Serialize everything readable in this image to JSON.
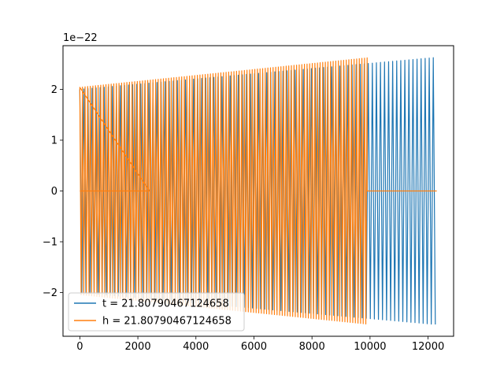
{
  "chart_data": {
    "type": "line",
    "title": "",
    "xlabel": "",
    "ylabel": "",
    "xlim": [
      -580,
      12880
    ],
    "ylim": [
      -2.86,
      2.86
    ],
    "y_scale_note": "1e−22",
    "grid": false,
    "legend_placement": "lower-left",
    "x_ticks": [
      {
        "value": 0,
        "label": "0"
      },
      {
        "value": 2000,
        "label": "2000"
      },
      {
        "value": 4000,
        "label": "4000"
      },
      {
        "value": 6000,
        "label": "6000"
      },
      {
        "value": 8000,
        "label": "8000"
      },
      {
        "value": 10000,
        "label": "10000"
      },
      {
        "value": 12000,
        "label": "12000"
      }
    ],
    "y_ticks": [
      {
        "value": -2,
        "label": "−2"
      },
      {
        "value": -1,
        "label": "−1"
      },
      {
        "value": 0,
        "label": "0"
      },
      {
        "value": 1,
        "label": "1"
      },
      {
        "value": 2,
        "label": "2"
      }
    ],
    "series": [
      {
        "name": "t = 21.80790467124658",
        "color": "#1f77b4",
        "x_start": 0,
        "x_end": 12300,
        "period": 140,
        "zero_before": 0,
        "envelope": {
          "x": [
            0,
            12300
          ],
          "amplitude": [
            2.0,
            2.63
          ]
        }
      },
      {
        "name": "h = 21.80790467124658",
        "color": "#ff7f0e",
        "x_start": 0,
        "x_end": 12300,
        "period": 90,
        "zero_before": 2400,
        "signal_start": 0,
        "signal_end": 9900,
        "envelope": {
          "x": [
            0,
            9900
          ],
          "amplitude": [
            2.04,
            2.62
          ]
        }
      }
    ]
  }
}
